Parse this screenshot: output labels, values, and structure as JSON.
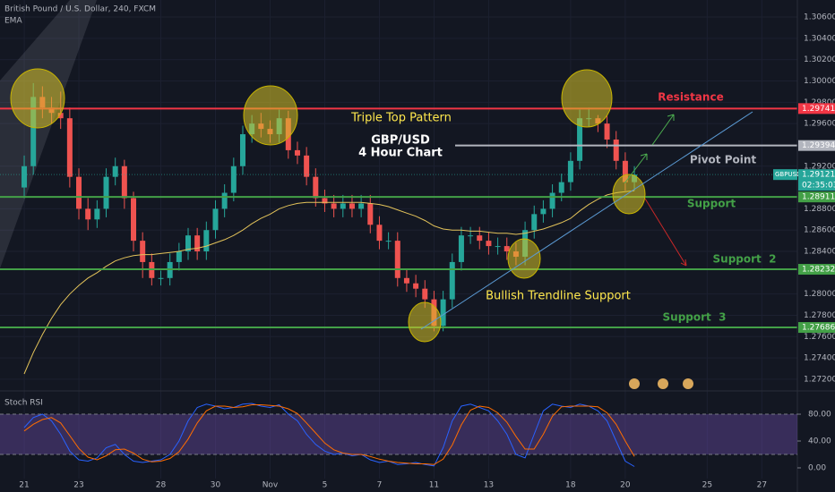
{
  "chart_data": {
    "type": "candlestick",
    "title": "British Pound / U.S. Dollar, 240, FXCM",
    "xlim": [
      -2.66,
      84.9
    ],
    "xticks": [
      {
        "value": 0,
        "label": "21"
      },
      {
        "value": 6,
        "label": "23"
      },
      {
        "value": 15,
        "label": "28"
      },
      {
        "value": 21,
        "label": "30"
      },
      {
        "value": 27,
        "label": "Nov"
      },
      {
        "value": 33,
        "label": "5"
      },
      {
        "value": 39,
        "label": "7"
      },
      {
        "value": 45,
        "label": "11"
      },
      {
        "value": 51,
        "label": "13"
      },
      {
        "value": 60,
        "label": "18"
      },
      {
        "value": 66,
        "label": "20"
      },
      {
        "value": 75,
        "label": "25"
      },
      {
        "value": 81,
        "label": "27"
      }
    ],
    "ylim": [
      1.27107,
      1.3076
    ],
    "yticks": [
      {
        "value": 1.306,
        "label": "1.30600"
      },
      {
        "value": 1.304,
        "label": "1.30400"
      },
      {
        "value": 1.302,
        "label": "1.30200"
      },
      {
        "value": 1.3,
        "label": "1.30000"
      },
      {
        "value": 1.298,
        "label": "1.29800"
      },
      {
        "value": 1.296,
        "label": "1.29600"
      },
      {
        "value": 1.292,
        "label": "1.29200"
      },
      {
        "value": 1.288,
        "label": "1.28800"
      },
      {
        "value": 1.286,
        "label": "1.28600"
      },
      {
        "value": 1.284,
        "label": "1.28400"
      },
      {
        "value": 1.28,
        "label": "1.28000"
      },
      {
        "value": 1.278,
        "label": "1.27800"
      },
      {
        "value": 1.276,
        "label": "1.27600"
      },
      {
        "value": 1.274,
        "label": "1.27400"
      },
      {
        "value": 1.272,
        "label": "1.27200"
      }
    ],
    "up_color": "#26a69a",
    "down_color": "#ef5350",
    "candles": {
      "open": [
        1.29,
        1.292,
        1.2985,
        1.2975,
        1.297,
        1.2965,
        1.291,
        1.288,
        1.287,
        1.288,
        1.291,
        1.292,
        1.289,
        1.285,
        1.283,
        1.2815,
        1.2815,
        1.283,
        1.284,
        1.2855,
        1.284,
        1.286,
        1.288,
        1.2895,
        1.292,
        1.295,
        1.296,
        1.2955,
        1.295,
        1.2965,
        1.2935,
        1.293,
        1.291,
        1.289,
        1.2885,
        1.288,
        1.2885,
        1.288,
        1.2885,
        1.2865,
        1.285,
        1.285,
        1.2815,
        1.281,
        1.2805,
        1.2795,
        1.277,
        1.2795,
        1.283,
        1.2855,
        1.2855,
        1.285,
        1.2845,
        1.2845,
        1.284,
        1.2835,
        1.286,
        1.2875,
        1.288,
        1.2895,
        1.2905,
        1.2925,
        1.2965,
        1.2965,
        1.296,
        1.2945,
        1.2925,
        1.2905
      ],
      "high": [
        1.293,
        1.2998,
        1.2995,
        1.2985,
        1.299,
        1.2975,
        1.2918,
        1.289,
        1.2888,
        1.2918,
        1.2928,
        1.2926,
        1.2896,
        1.2858,
        1.2838,
        1.2822,
        1.2838,
        1.2848,
        1.2862,
        1.2862,
        1.2868,
        1.2888,
        1.2903,
        1.2928,
        1.2958,
        1.2968,
        1.297,
        1.2963,
        1.2973,
        1.2972,
        1.2943,
        1.2938,
        1.2918,
        1.2898,
        1.2893,
        1.2893,
        1.2893,
        1.2893,
        1.2893,
        1.2873,
        1.2858,
        1.2858,
        1.2823,
        1.2818,
        1.2813,
        1.2803,
        1.2803,
        1.2838,
        1.2863,
        1.2863,
        1.2863,
        1.2858,
        1.2853,
        1.2853,
        1.2848,
        1.2868,
        1.2883,
        1.2888,
        1.2903,
        1.2913,
        1.2933,
        1.2973,
        1.2975,
        1.2968,
        1.2968,
        1.2953,
        1.2933,
        1.292
      ],
      "low": [
        1.289,
        1.2912,
        1.2965,
        1.296,
        1.2955,
        1.29,
        1.287,
        1.286,
        1.2862,
        1.2872,
        1.2902,
        1.288,
        1.284,
        1.2815,
        1.2808,
        1.2808,
        1.2808,
        1.2822,
        1.2832,
        1.2832,
        1.2832,
        1.2852,
        1.2872,
        1.2887,
        1.2912,
        1.2942,
        1.2947,
        1.2942,
        1.2942,
        1.2927,
        1.2922,
        1.2902,
        1.2882,
        1.2877,
        1.2872,
        1.2872,
        1.2872,
        1.2872,
        1.2857,
        1.2842,
        1.2842,
        1.2807,
        1.2802,
        1.2797,
        1.2787,
        1.2765,
        1.2765,
        1.2787,
        1.2822,
        1.2847,
        1.2842,
        1.2837,
        1.2837,
        1.2832,
        1.2827,
        1.2827,
        1.2852,
        1.2867,
        1.2872,
        1.2887,
        1.2897,
        1.2917,
        1.2957,
        1.2952,
        1.2937,
        1.2917,
        1.2897,
        1.2897
      ],
      "close": [
        1.292,
        1.2985,
        1.2975,
        1.297,
        1.2965,
        1.291,
        1.288,
        1.287,
        1.288,
        1.291,
        1.292,
        1.289,
        1.285,
        1.283,
        1.2815,
        1.2815,
        1.283,
        1.284,
        1.2855,
        1.284,
        1.286,
        1.288,
        1.2895,
        1.292,
        1.295,
        1.296,
        1.2955,
        1.295,
        1.2965,
        1.2935,
        1.293,
        1.291,
        1.289,
        1.2885,
        1.288,
        1.2885,
        1.288,
        1.2885,
        1.2865,
        1.285,
        1.285,
        1.2815,
        1.281,
        1.2805,
        1.2795,
        1.277,
        1.2795,
        1.283,
        1.2855,
        1.2855,
        1.285,
        1.2845,
        1.2845,
        1.284,
        1.2835,
        1.286,
        1.2875,
        1.288,
        1.2895,
        1.2905,
        1.2925,
        1.2965,
        1.2965,
        1.296,
        1.2945,
        1.2925,
        1.2905,
        1.29121
      ]
    },
    "ema": {
      "name": "EMA",
      "color": "#e3c35a",
      "values": [
        1.2725,
        1.2745,
        1.2762,
        1.2777,
        1.279,
        1.28,
        1.2808,
        1.2815,
        1.282,
        1.2826,
        1.2831,
        1.2834,
        1.2836,
        1.2837,
        1.2837,
        1.2838,
        1.2839,
        1.284,
        1.2842,
        1.2843,
        1.2845,
        1.2848,
        1.2851,
        1.2855,
        1.286,
        1.2866,
        1.2871,
        1.2875,
        1.288,
        1.2883,
        1.2885,
        1.2886,
        1.2886,
        1.2886,
        1.2886,
        1.2886,
        1.2886,
        1.2886,
        1.2885,
        1.2884,
        1.2882,
        1.2879,
        1.2876,
        1.2873,
        1.2869,
        1.2864,
        1.2861,
        1.286,
        1.286,
        1.2859,
        1.2859,
        1.2858,
        1.2857,
        1.2857,
        1.2856,
        1.2857,
        1.2859,
        1.2861,
        1.2864,
        1.2867,
        1.2871,
        1.2878,
        1.2884,
        1.2889,
        1.2893,
        1.2895,
        1.2896,
        1.2897
      ]
    },
    "symbol": "GBPUSD",
    "countdown": "02:35:03",
    "levels": [
      {
        "name": "Resistance",
        "value": 1.29741,
        "color": "#f23645"
      },
      {
        "name": "Pivot Point",
        "value": 1.29394,
        "color": "#b2b5be"
      },
      {
        "name": "Support",
        "value": 1.28911,
        "color": "#43a047"
      },
      {
        "name": "Support  2",
        "value": 1.28232,
        "color": "#43a047"
      },
      {
        "name": "Support  3",
        "value": 1.27686,
        "color": "#43a047"
      }
    ],
    "annotations": [
      {
        "text": "Triple Top Pattern",
        "color": "#ffe84d"
      },
      {
        "text": "GBP/USD",
        "color": "#ffffff"
      },
      {
        "text": "4 Hour Chart",
        "color": "#ffffff"
      },
      {
        "text": "Bullish Trendline Support",
        "color": "#ffe84d"
      }
    ],
    "rsi": {
      "name": "Stoch RSI",
      "ylim": [
        -16,
        110.7
      ],
      "yticks": [
        {
          "value": 80,
          "label": "80.00"
        },
        {
          "value": 40,
          "label": "40.00"
        },
        {
          "value": 0,
          "label": "0.00"
        }
      ],
      "band": [
        20,
        80
      ],
      "k": {
        "color": "#2962ff",
        "values": [
          60,
          75,
          80,
          70,
          50,
          25,
          12,
          10,
          15,
          30,
          35,
          20,
          10,
          8,
          10,
          12,
          20,
          40,
          70,
          90,
          95,
          92,
          88,
          90,
          95,
          96,
          92,
          90,
          94,
          80,
          70,
          50,
          35,
          25,
          20,
          22,
          18,
          20,
          12,
          8,
          10,
          5,
          6,
          8,
          5,
          3,
          30,
          70,
          92,
          95,
          90,
          85,
          70,
          50,
          20,
          15,
          50,
          85,
          95,
          92,
          90,
          95,
          92,
          85,
          70,
          40,
          10,
          2
        ]
      },
      "d": {
        "color": "#ff6d00",
        "values": [
          55,
          65,
          72,
          75,
          67,
          48,
          29,
          16,
          12,
          18,
          27,
          28,
          22,
          13,
          9,
          10,
          14,
          24,
          43,
          67,
          85,
          92,
          92,
          90,
          91,
          94,
          94,
          93,
          92,
          88,
          81,
          67,
          52,
          37,
          27,
          22,
          20,
          20,
          17,
          13,
          10,
          8,
          7,
          6,
          6,
          5,
          13,
          34,
          64,
          86,
          92,
          90,
          82,
          68,
          47,
          28,
          28,
          50,
          77,
          91,
          92,
          92,
          92,
          91,
          82,
          65,
          40,
          17
        ]
      }
    }
  }
}
